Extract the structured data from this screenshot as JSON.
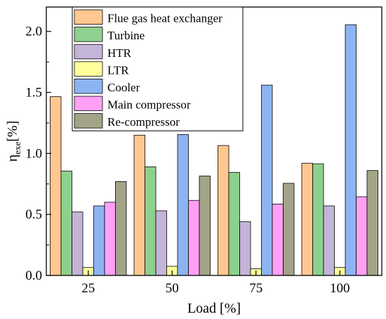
{
  "chart_data": {
    "type": "bar",
    "xlabel": "Load [%]",
    "ylabel": {
      "main": "η",
      "sub": "exe",
      "unit": "[%]"
    },
    "categories": [
      "25",
      "50",
      "75",
      "100"
    ],
    "ylim": [
      0,
      2.2
    ],
    "yticks": [
      "0.0",
      "0.5",
      "1.0",
      "1.5",
      "2.0"
    ],
    "grid": false,
    "legend_position": "top-left",
    "series": [
      {
        "name": "Flue gas heat exchanger",
        "color": "#FFC890",
        "values": [
          1.465,
          1.15,
          1.065,
          0.92
        ]
      },
      {
        "name": "Turbine",
        "color": "#8ED08E",
        "values": [
          0.855,
          0.89,
          0.845,
          0.915
        ]
      },
      {
        "name": "HTR",
        "color": "#C3B4D8",
        "values": [
          0.52,
          0.53,
          0.44,
          0.57
        ]
      },
      {
        "name": "LTR",
        "color": "#FFFF9C",
        "values": [
          0.065,
          0.075,
          0.055,
          0.065
        ]
      },
      {
        "name": "Cooler",
        "color": "#8DB4F2",
        "values": [
          0.57,
          1.155,
          1.56,
          2.055
        ]
      },
      {
        "name": "Main compressor",
        "color": "#FFA0F5",
        "values": [
          0.6,
          0.615,
          0.585,
          0.645
        ]
      },
      {
        "name": "Re-compressor",
        "color": "#A3A387",
        "values": [
          0.77,
          0.815,
          0.755,
          0.86
        ]
      }
    ]
  }
}
